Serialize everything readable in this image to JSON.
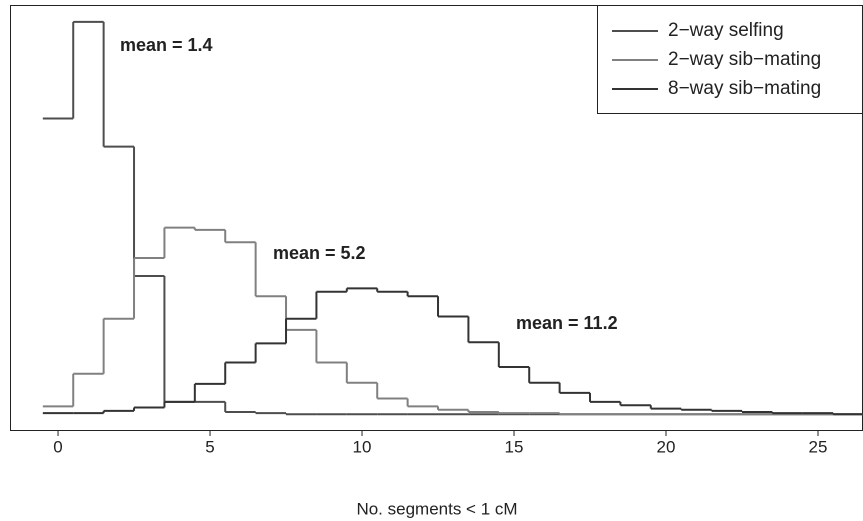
{
  "chart_data": {
    "type": "step-histogram",
    "x_label": "No. segments < 1 cM",
    "bins": [
      -0.5,
      0.5,
      1.5,
      2.5,
      3.5,
      4.5,
      5.5,
      6.5,
      7.5,
      8.5,
      9.5,
      10.5,
      11.5,
      12.5,
      13.5,
      14.5,
      15.5,
      16.5,
      17.5,
      18.5,
      19.5,
      20.5,
      21.5,
      22.5,
      23.5,
      24.5,
      25.5,
      26.5
    ],
    "series": [
      {
        "name": "2−way selfing",
        "color": "#4d4d4d",
        "values": [
          0.263,
          0.349,
          0.238,
          0.123,
          0.011,
          0.011,
          0.002,
          0.001,
          0,
          0,
          0,
          0,
          0,
          0,
          0,
          0,
          0,
          0,
          0,
          0,
          0,
          0,
          0,
          0,
          0,
          0,
          0
        ]
      },
      {
        "name": "2−way sib−mating",
        "color": "#808080",
        "values": [
          0.007,
          0.036,
          0.085,
          0.139,
          0.166,
          0.164,
          0.153,
          0.105,
          0.075,
          0.046,
          0.028,
          0.014,
          0.007,
          0.004,
          0.002,
          0.001,
          0.001,
          0,
          0,
          0,
          0,
          0,
          0,
          0,
          0,
          0,
          0
        ]
      },
      {
        "name": "8−way sib−mating",
        "color": "#333333",
        "values": [
          0.001,
          0.001,
          0.003,
          0.006,
          0.011,
          0.027,
          0.046,
          0.063,
          0.085,
          0.109,
          0.112,
          0.109,
          0.105,
          0.087,
          0.064,
          0.042,
          0.028,
          0.019,
          0.011,
          0.008,
          0.005,
          0.004,
          0.003,
          0.002,
          0.001,
          0.001,
          0
        ]
      }
    ],
    "annotations": [
      {
        "text": "mean = 1.4",
        "color": "#4d4d4d"
      },
      {
        "text": "mean = 5.2",
        "color": "#808080"
      },
      {
        "text": "mean = 11.2",
        "color": "#4d4d4d"
      }
    ],
    "xlim": [
      -1.58,
      26.48
    ],
    "xticks": [
      0,
      5,
      10,
      15,
      20,
      25
    ],
    "ylim": [
      -0.014,
      0.364
    ],
    "legend": "top-right"
  }
}
